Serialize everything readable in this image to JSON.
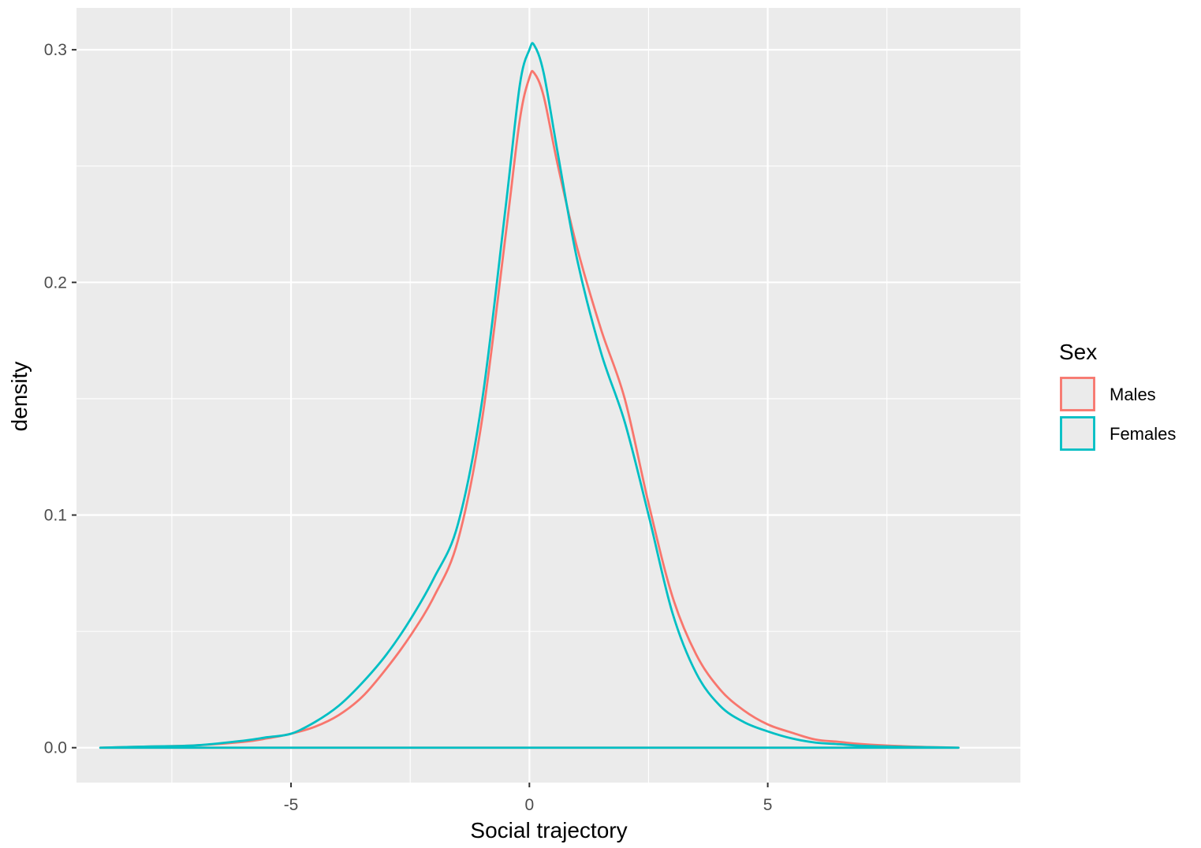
{
  "chart_data": {
    "type": "line",
    "subtype": "density",
    "title": "",
    "xlabel": "Social trajectory",
    "ylabel": "density",
    "xlim": [
      -9.5,
      10.3
    ],
    "ylim": [
      -0.015,
      0.318
    ],
    "x_ticks": [
      -5,
      0,
      5
    ],
    "x_tick_labels": [
      "-5",
      "0",
      "5"
    ],
    "y_ticks": [
      0.0,
      0.1,
      0.2,
      0.3
    ],
    "y_tick_labels": [
      "0.0",
      "0.1",
      "0.2",
      "0.3"
    ],
    "grid": true,
    "legend": {
      "title": "Sex",
      "position": "right"
    },
    "series": [
      {
        "name": "Males",
        "color": "#F8766D",
        "points": [
          [
            -9,
            0.0
          ],
          [
            -8,
            0.0005
          ],
          [
            -7,
            0.001
          ],
          [
            -6,
            0.0025
          ],
          [
            -5.5,
            0.004
          ],
          [
            -5,
            0.006
          ],
          [
            -4.5,
            0.009
          ],
          [
            -4,
            0.014
          ],
          [
            -3.5,
            0.022
          ],
          [
            -3,
            0.034
          ],
          [
            -2.5,
            0.048
          ],
          [
            -2,
            0.065
          ],
          [
            -1.5,
            0.089
          ],
          [
            -1,
            0.14
          ],
          [
            -0.5,
            0.22
          ],
          [
            -0.2,
            0.27
          ],
          [
            0,
            0.288
          ],
          [
            0.1,
            0.29
          ],
          [
            0.3,
            0.28
          ],
          [
            0.6,
            0.25
          ],
          [
            1,
            0.215
          ],
          [
            1.5,
            0.18
          ],
          [
            2,
            0.15
          ],
          [
            2.5,
            0.105
          ],
          [
            3,
            0.065
          ],
          [
            3.5,
            0.04
          ],
          [
            4,
            0.025
          ],
          [
            4.5,
            0.016
          ],
          [
            5,
            0.01
          ],
          [
            5.5,
            0.0065
          ],
          [
            6,
            0.0035
          ],
          [
            6.5,
            0.0025
          ],
          [
            7,
            0.0015
          ],
          [
            8,
            0.0005
          ],
          [
            9,
            0.0
          ]
        ]
      },
      {
        "name": "Females",
        "color": "#00BFC4",
        "points": [
          [
            -9,
            0.0
          ],
          [
            -8,
            0.0005
          ],
          [
            -7,
            0.001
          ],
          [
            -6,
            0.003
          ],
          [
            -5.5,
            0.0045
          ],
          [
            -5,
            0.006
          ],
          [
            -4.5,
            0.011
          ],
          [
            -4,
            0.018
          ],
          [
            -3.5,
            0.028
          ],
          [
            -3,
            0.04
          ],
          [
            -2.5,
            0.055
          ],
          [
            -2,
            0.073
          ],
          [
            -1.5,
            0.096
          ],
          [
            -1,
            0.148
          ],
          [
            -0.5,
            0.232
          ],
          [
            -0.2,
            0.285
          ],
          [
            0,
            0.3
          ],
          [
            0.1,
            0.302
          ],
          [
            0.3,
            0.29
          ],
          [
            0.6,
            0.255
          ],
          [
            1,
            0.21
          ],
          [
            1.5,
            0.17
          ],
          [
            2,
            0.14
          ],
          [
            2.5,
            0.1
          ],
          [
            3,
            0.058
          ],
          [
            3.5,
            0.032
          ],
          [
            4,
            0.018
          ],
          [
            4.5,
            0.011
          ],
          [
            5,
            0.007
          ],
          [
            5.5,
            0.004
          ],
          [
            6,
            0.0022
          ],
          [
            6.5,
            0.0015
          ],
          [
            7,
            0.0008
          ],
          [
            8,
            0.0003
          ],
          [
            9,
            0.0
          ]
        ]
      }
    ]
  }
}
